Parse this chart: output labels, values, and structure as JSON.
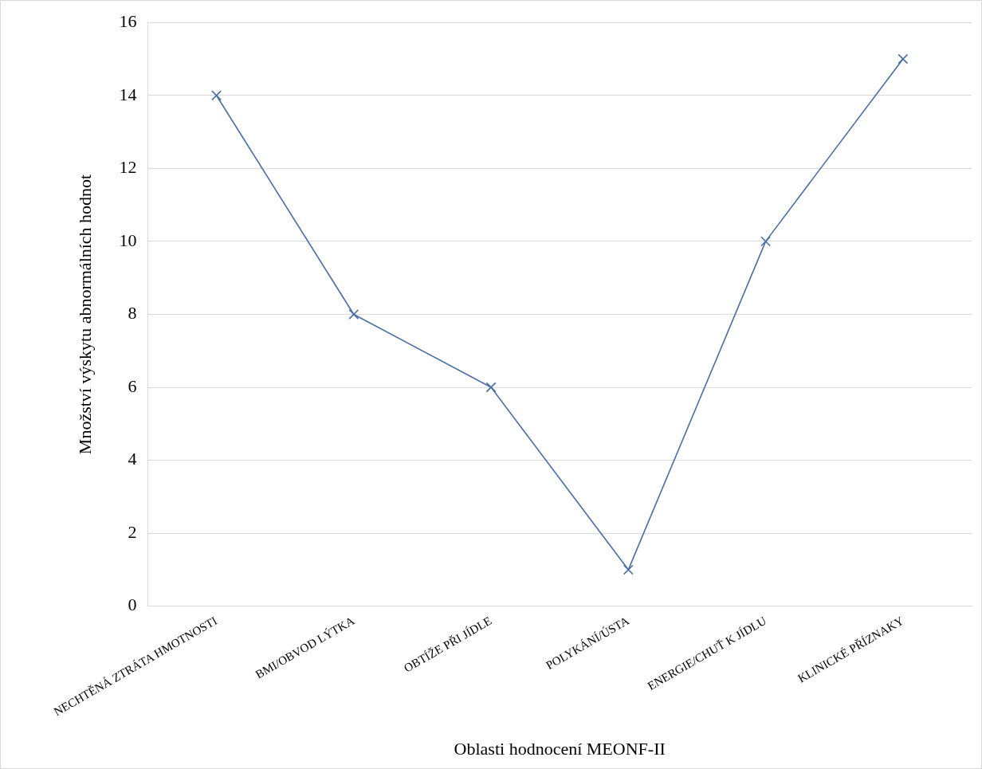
{
  "chart_data": {
    "type": "line",
    "xlabel": "Oblasti hodnocení MEONF-II",
    "ylabel": "Množství výskytu abnormálních hodnot",
    "categories": [
      "NECHTĚNÁ ZTRÁTA HMOTNOSTI",
      "BMI/OBVOD LÝTKA",
      "OBTÍŽE PŘI JÍDLE",
      "POLYKÁNÍ/ÚSTA",
      "ENERGIE/CHUŤ K JÍDLU",
      "KLINICKÉ PŘÍZNAKY"
    ],
    "values": [
      14,
      8,
      6,
      1,
      10,
      15
    ],
    "color": "#4a6fa5",
    "ylim": [
      0,
      16
    ],
    "yticks": [
      0,
      2,
      4,
      6,
      8,
      10,
      12,
      14,
      16
    ],
    "grid": "y",
    "legend": false,
    "marker": "cross",
    "line_style": "solid"
  }
}
